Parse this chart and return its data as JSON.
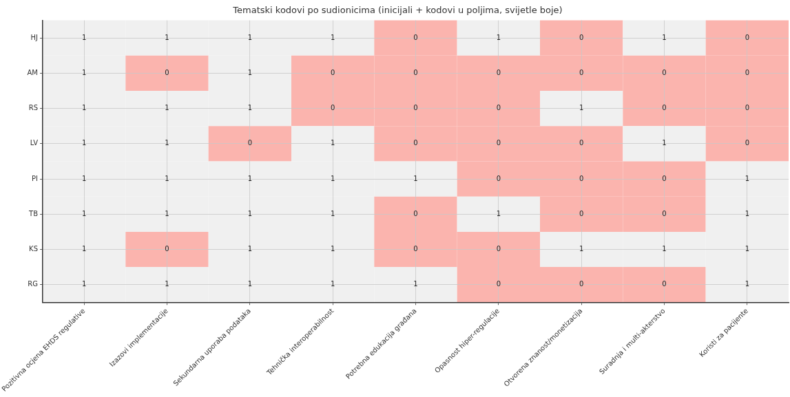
{
  "chart_data": {
    "type": "heatmap",
    "title": "Tematski kodovi po sudionicima (inicijali + kodovi u poljima, svijetle boje)",
    "categories": [
      "Pozitivna ocjena EHDS regulative",
      "Izazovi implementacije",
      "Sekundarna uporaba podataka",
      "Tehnička interoperabilnost",
      "Potrebna edukacija građana",
      "Opasnost hiper-regulacije",
      "Otvorena znanost/monetizacija",
      "Suradnja i multi-akterstvo",
      "Koristi za pacijente"
    ],
    "y_categories": [
      "HJ",
      "AM",
      "RS",
      "LV",
      "PI",
      "TB",
      "KS",
      "RG"
    ],
    "cells": [
      [
        1,
        1,
        1,
        1,
        0,
        1,
        0,
        1,
        0
      ],
      [
        1,
        0,
        1,
        0,
        0,
        0,
        0,
        0,
        0
      ],
      [
        1,
        1,
        1,
        0,
        0,
        0,
        1,
        0,
        0
      ],
      [
        1,
        1,
        0,
        1,
        0,
        0,
        0,
        1,
        0
      ],
      [
        1,
        1,
        1,
        1,
        1,
        0,
        0,
        0,
        1
      ],
      [
        1,
        1,
        1,
        1,
        0,
        1,
        0,
        0,
        1
      ],
      [
        1,
        0,
        1,
        1,
        0,
        0,
        1,
        1,
        1
      ],
      [
        1,
        1,
        1,
        1,
        1,
        0,
        0,
        0,
        1
      ]
    ],
    "colors": [
      "#fbb4ae",
      "#f0f0f0"
    ],
    "grid": true,
    "data_labels": true
  }
}
